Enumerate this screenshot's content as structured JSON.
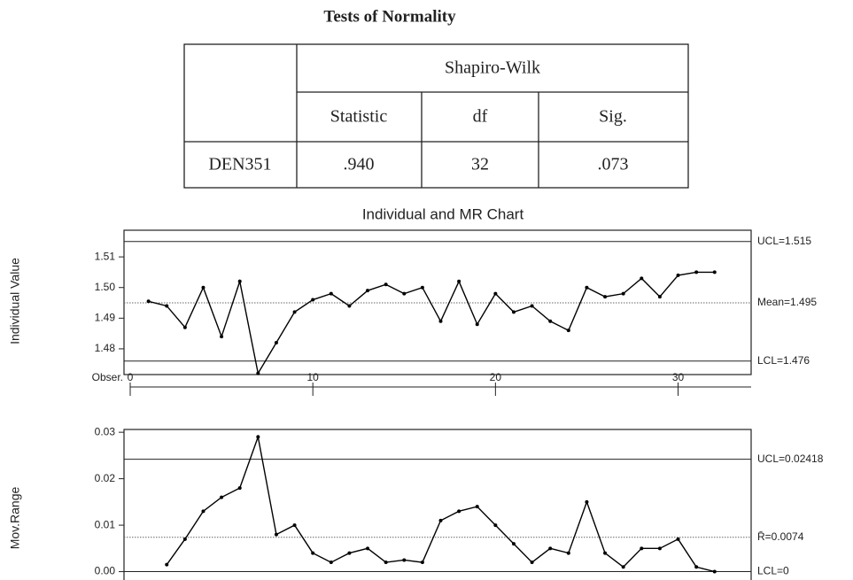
{
  "table": {
    "title": "Tests of Normality",
    "group": "Shapiro-Wilk",
    "columns": [
      "Statistic",
      "df",
      "Sig."
    ],
    "rows": [
      [
        "DEN351",
        ".940",
        "32",
        ".073"
      ]
    ]
  },
  "chart_data": [
    {
      "type": "line",
      "title": "Individual and MR Chart",
      "y_label": "Individual Value",
      "x_label": "Obser.",
      "x": [
        1,
        2,
        3,
        4,
        5,
        6,
        7,
        8,
        9,
        10,
        11,
        12,
        13,
        14,
        15,
        16,
        17,
        18,
        19,
        20,
        21,
        22,
        23,
        24,
        25,
        26,
        27,
        28,
        29,
        30,
        31,
        32
      ],
      "series": [
        {
          "name": "Individual Value",
          "color": "#000000",
          "values": [
            1.4955,
            1.494,
            1.487,
            1.5,
            1.484,
            1.502,
            1.472,
            1.482,
            1.492,
            1.496,
            1.498,
            1.494,
            1.499,
            1.501,
            1.498,
            1.5,
            1.489,
            1.502,
            1.488,
            1.498,
            1.492,
            1.494,
            1.489,
            1.486,
            1.5,
            1.497,
            1.498,
            1.503,
            1.497,
            1.504,
            1.505,
            1.505
          ]
        }
      ],
      "xlim": [
        -0.34,
        34
      ],
      "xticks": [
        0,
        10,
        20,
        30
      ],
      "ylim": [
        1.4716,
        1.5187
      ],
      "yticks": [
        1.51,
        {
          "value": 1.5,
          "label": "1.50"
        },
        1.49,
        1.48
      ],
      "control_lines": [
        {
          "label": "UCL=1.515",
          "value": 1.515,
          "style": "solid"
        },
        {
          "label": "Mean=1.495",
          "value": 1.495,
          "style": "dotted"
        },
        {
          "label": "LCL=1.476",
          "value": 1.476,
          "style": "solid"
        }
      ]
    },
    {
      "type": "line",
      "y_label": "Mov.Range",
      "x": [
        1,
        2,
        3,
        4,
        5,
        6,
        7,
        8,
        9,
        10,
        11,
        12,
        13,
        14,
        15,
        16,
        17,
        18,
        19,
        20,
        21,
        22,
        23,
        24,
        25,
        26,
        27,
        28,
        29,
        30,
        31,
        32
      ],
      "series": [
        {
          "name": "Mov.Range",
          "color": "#000000",
          "values": [
            null,
            0.0015,
            0.007,
            0.013,
            0.016,
            0.018,
            0.029,
            0.008,
            0.01,
            0.004,
            0.002,
            0.004,
            0.005,
            0.002,
            0.0025,
            0.002,
            0.011,
            0.013,
            0.014,
            0.01,
            0.006,
            0.002,
            0.005,
            0.004,
            0.015,
            0.004,
            0.001,
            0.005,
            0.005,
            0.007,
            0.001,
            0
          ]
        }
      ],
      "xlim": [
        -0.34,
        34
      ],
      "ylim": [
        -0.0018,
        0.0306
      ],
      "yticks": [
        0.03,
        0.02,
        0.01,
        {
          "value": 0,
          "label": "0.00"
        }
      ],
      "control_lines": [
        {
          "label": "UCL=0.02418",
          "value": 0.02418,
          "style": "solid"
        },
        {
          "label": "R̄=0.0074",
          "value": 0.0074,
          "style": "dotted"
        },
        {
          "label": "LCL=0",
          "value": 0,
          "style": "solid"
        }
      ]
    }
  ]
}
